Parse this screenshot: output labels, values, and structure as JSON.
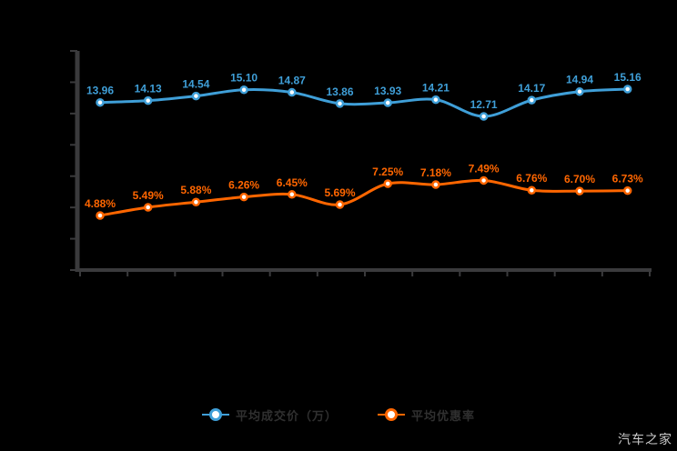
{
  "watermark": "汽车之家",
  "legend": {
    "items": [
      {
        "label": "平均成交价（万）",
        "color": "#3f9fd8"
      },
      {
        "label": "平均优惠率",
        "color": "#ff6600"
      }
    ]
  },
  "chart_data": {
    "type": "line",
    "title": "",
    "xlabel": "",
    "ylabel": "",
    "background": "#000000",
    "axis_color": "#3a3a3c",
    "grid": false,
    "legend_position": "bottom",
    "x_tick_count": 13,
    "y_tick_count": 8,
    "x_tick_labels": [],
    "series": [
      {
        "name": "平均成交价（万）",
        "color": "#3f9fd8",
        "unit": "",
        "values": [
          13.96,
          14.13,
          14.54,
          15.1,
          14.87,
          13.86,
          13.93,
          14.21,
          12.71,
          14.17,
          14.94,
          15.16
        ]
      },
      {
        "name": "平均优惠率",
        "color": "#ff6600",
        "unit": "%",
        "values": [
          4.88,
          5.49,
          5.88,
          6.26,
          6.45,
          5.69,
          7.25,
          7.18,
          7.49,
          6.76,
          6.7,
          6.73
        ]
      }
    ]
  }
}
